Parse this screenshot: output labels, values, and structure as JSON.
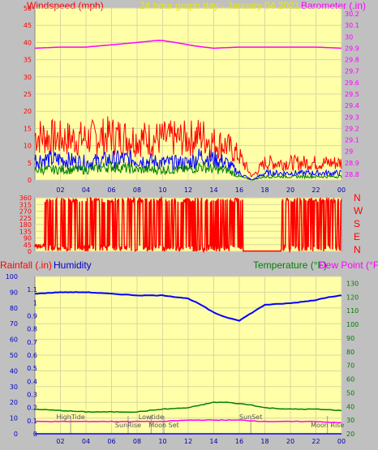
{
  "header": {
    "left_label": "Windspeed (mph)",
    "title": "24 hour graph day - January 04 2021",
    "right_label": "Barometer (.in)"
  },
  "lower_header": {
    "rain_label": "Rainfall (.in)",
    "humidity_label": "Humidity",
    "temp_label": "Temperature (°F)",
    "dew_label": "Dew Point (°F)"
  },
  "compass": [
    "N",
    "W",
    "S",
    "E",
    "N"
  ],
  "colors": {
    "panel_bg": "#ffffa8",
    "windspeed": "#ff0000",
    "wind_avg": "#0000ff",
    "wind_low": "#008000",
    "barometer": "#ff00ff",
    "humidity": "#0000ff",
    "temperature": "#008000",
    "dewpoint": "#ff00ff",
    "rainfall": "#0000ff"
  },
  "chart_data": [
    {
      "type": "line",
      "title": "24 hour graph day - January 04 2021",
      "x_ticks": [
        "02",
        "04",
        "06",
        "08",
        "10",
        "12",
        "14",
        "16",
        "18",
        "20",
        "22",
        "00"
      ],
      "y_left": {
        "label": "Windspeed (mph)",
        "range": [
          0,
          50
        ],
        "ticks": [
          0,
          5,
          10,
          15,
          20,
          25,
          30,
          35,
          40,
          45,
          50
        ]
      },
      "y_right": {
        "label": "Barometer (.in)",
        "range": [
          28.75,
          30.25
        ],
        "ticks": [
          "28.8",
          "28.9",
          "29",
          "29.1",
          "29.2",
          "29.3",
          "29.4",
          "29.5",
          "29.6",
          "29.7",
          "29.8",
          "29.9",
          "30",
          "30.1",
          "30.2"
        ]
      },
      "series": [
        {
          "name": "Barometer (.in)",
          "axis": "right",
          "x": [
            0,
            2,
            4,
            6,
            8,
            9.8,
            11,
            12.5,
            14,
            16,
            18,
            20,
            22,
            24
          ],
          "values": [
            29.9,
            29.91,
            29.91,
            29.93,
            29.95,
            29.97,
            29.95,
            29.92,
            29.9,
            29.91,
            29.91,
            29.91,
            29.91,
            29.9
          ]
        },
        {
          "name": "gust",
          "axis": "left",
          "x": [
            0,
            2,
            4,
            6,
            8,
            10,
            12,
            13,
            14,
            15,
            16,
            17,
            18,
            20,
            22,
            24
          ],
          "values": [
            13,
            12,
            12,
            13,
            12,
            12,
            12,
            13,
            11,
            10,
            7,
            1,
            5,
            5,
            5,
            5
          ]
        },
        {
          "name": "average",
          "axis": "left",
          "x": [
            0,
            2,
            4,
            6,
            8,
            10,
            12,
            13,
            14,
            15,
            16,
            17,
            18,
            20,
            22,
            24
          ],
          "values": [
            6,
            6,
            5,
            6,
            6,
            5,
            5,
            7,
            6,
            5,
            2,
            0,
            2,
            2,
            2,
            2
          ]
        },
        {
          "name": "low",
          "axis": "left",
          "x": [
            0,
            2,
            4,
            6,
            8,
            10,
            12,
            13,
            14,
            15,
            16,
            17,
            18,
            20,
            22,
            24
          ],
          "values": [
            3,
            3,
            3,
            4,
            3,
            3,
            3,
            4,
            3,
            3,
            1,
            0,
            1,
            1,
            1,
            1
          ]
        }
      ]
    },
    {
      "type": "line",
      "y_left": {
        "range": [
          0,
          360
        ],
        "ticks": [
          0,
          45,
          90,
          135,
          180,
          225,
          270,
          315,
          360
        ]
      },
      "y_right_labels": [
        "N",
        "W",
        "S",
        "E",
        "N"
      ],
      "series": [
        {
          "name": "wind direction",
          "x": [
            0,
            0.5,
            1,
            2,
            3,
            4,
            5,
            6,
            7,
            8,
            9,
            10,
            11,
            12,
            13,
            14,
            15,
            16,
            18,
            20,
            21,
            22,
            23,
            24
          ],
          "values": [
            20,
            40,
            350,
            30,
            340,
            30,
            350,
            20,
            340,
            30,
            350,
            40,
            340,
            30,
            350,
            20,
            340,
            30,
            0,
            0,
            350,
            30,
            350,
            20
          ]
        }
      ]
    },
    {
      "type": "line",
      "x_ticks": [
        "02",
        "04",
        "06",
        "08",
        "10",
        "12",
        "14",
        "16",
        "18",
        "20",
        "22",
        "00"
      ],
      "y_left": {
        "label": "Humidity",
        "range": [
          0,
          100
        ],
        "ticks": [
          0,
          10,
          20,
          30,
          40,
          50,
          60,
          70,
          80,
          90,
          100
        ]
      },
      "y_left2": {
        "label": "Rainfall (.in)",
        "range": [
          0,
          1.2
        ],
        "ticks": [
          "0",
          "0.1",
          "0.2",
          "0.3",
          "0.4",
          "0.5",
          "0.6",
          "0.7",
          "0.8",
          "0.9",
          "1",
          "1.1"
        ]
      },
      "y_right": {
        "label": "Temperature (°F)",
        "range": [
          20,
          135
        ],
        "ticks": [
          20,
          30,
          40,
          50,
          60,
          70,
          80,
          90,
          100,
          110,
          120,
          130
        ]
      },
      "series": [
        {
          "name": "Humidity",
          "axis": "left",
          "x": [
            0,
            2,
            4,
            6,
            8,
            10,
            11,
            12,
            13,
            14,
            15,
            16,
            17,
            18,
            20,
            22,
            23,
            24
          ],
          "values": [
            89,
            90,
            90,
            89,
            88,
            88,
            87,
            86,
            82,
            77,
            74,
            72,
            77,
            82,
            83,
            85,
            87,
            88
          ]
        },
        {
          "name": "Temperature (°F)",
          "axis": "right",
          "x": [
            0,
            2,
            4,
            6,
            8,
            10,
            12,
            13,
            14,
            15,
            16,
            17,
            18,
            20,
            22,
            24
          ],
          "values": [
            38,
            37,
            36,
            36,
            36,
            38,
            39,
            41,
            43,
            43,
            42,
            41,
            39,
            38,
            38,
            37
          ]
        },
        {
          "name": "Dew Point (°F)",
          "axis": "right",
          "x": [
            0,
            2,
            4,
            6,
            8,
            10,
            12,
            14,
            16,
            18,
            20,
            22,
            24
          ],
          "values": [
            29,
            29,
            29,
            29,
            29,
            29,
            30,
            30,
            30,
            29,
            29,
            29,
            28
          ]
        },
        {
          "name": "Rainfall (.in)",
          "axis": "left2",
          "x": [
            0,
            24
          ],
          "values": [
            0,
            0
          ]
        }
      ],
      "annotations": [
        {
          "text": "HighTide",
          "hour": 2.8
        },
        {
          "text": "SunRise",
          "hour": 7.3
        },
        {
          "text": "Lowtide",
          "hour": 9.1
        },
        {
          "text": "Moon Set",
          "hour": 10.1
        },
        {
          "text": "SunSet",
          "hour": 16.9
        },
        {
          "text": "Moon Rise",
          "hour": 22.9
        }
      ]
    }
  ]
}
